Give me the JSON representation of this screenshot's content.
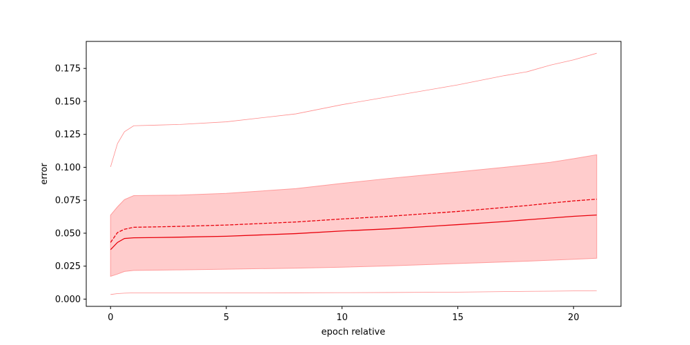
{
  "chart_data": {
    "type": "line",
    "xlabel": "epoch relative",
    "ylabel": "error",
    "xlim": [
      -1.05,
      22.05
    ],
    "ylim": [
      -0.0055,
      0.1955
    ],
    "xticks": [
      0,
      5,
      10,
      15,
      20
    ],
    "yticks": [
      0.0,
      0.025,
      0.05,
      0.075,
      0.1,
      0.125,
      0.15,
      0.175
    ],
    "ytick_labels": [
      "0.000",
      "0.025",
      "0.050",
      "0.075",
      "0.100",
      "0.125",
      "0.150",
      "0.175"
    ],
    "grid": false,
    "colors": {
      "main": "#e8000b",
      "band": "#ffcccc",
      "band_edge": "#ff9a9a",
      "thin": "#ff8a8a"
    },
    "x": [
      0,
      0.3,
      0.6,
      1,
      2,
      3,
      5,
      8,
      10,
      12,
      15,
      17,
      18,
      19,
      20,
      21
    ],
    "series": [
      {
        "style": "solid",
        "values": [
          0.0375,
          0.043,
          0.046,
          0.0465,
          0.0467,
          0.047,
          0.0477,
          0.0497,
          0.0517,
          0.0533,
          0.0565,
          0.0588,
          0.0602,
          0.0615,
          0.0628,
          0.0638
        ]
      },
      {
        "style": "dashed",
        "values": [
          0.043,
          0.0505,
          0.053,
          0.0545,
          0.0548,
          0.0552,
          0.0562,
          0.0585,
          0.0608,
          0.0628,
          0.0665,
          0.0695,
          0.071,
          0.0728,
          0.0745,
          0.0758
        ]
      },
      {
        "style": "thin",
        "values": [
          0.1003,
          0.118,
          0.127,
          0.1315,
          0.132,
          0.1325,
          0.1345,
          0.1405,
          0.1475,
          0.1535,
          0.1625,
          0.1695,
          0.1725,
          0.1775,
          0.1815,
          0.1865
        ]
      },
      {
        "style": "thin",
        "values": [
          0.0035,
          0.0042,
          0.0045,
          0.0047,
          0.0047,
          0.0047,
          0.0047,
          0.0048,
          0.0049,
          0.005,
          0.0053,
          0.0057,
          0.0059,
          0.006,
          0.0062,
          0.0064
        ]
      }
    ],
    "band": {
      "upper": [
        0.0637,
        0.07,
        0.0755,
        0.0785,
        0.0787,
        0.0789,
        0.0802,
        0.0838,
        0.0878,
        0.0915,
        0.0965,
        0.1,
        0.1018,
        0.1038,
        0.1065,
        0.1095
      ],
      "lower": [
        0.0173,
        0.019,
        0.021,
        0.0218,
        0.022,
        0.0222,
        0.0227,
        0.0235,
        0.0242,
        0.0252,
        0.027,
        0.0282,
        0.0288,
        0.0295,
        0.0302,
        0.031
      ]
    }
  }
}
